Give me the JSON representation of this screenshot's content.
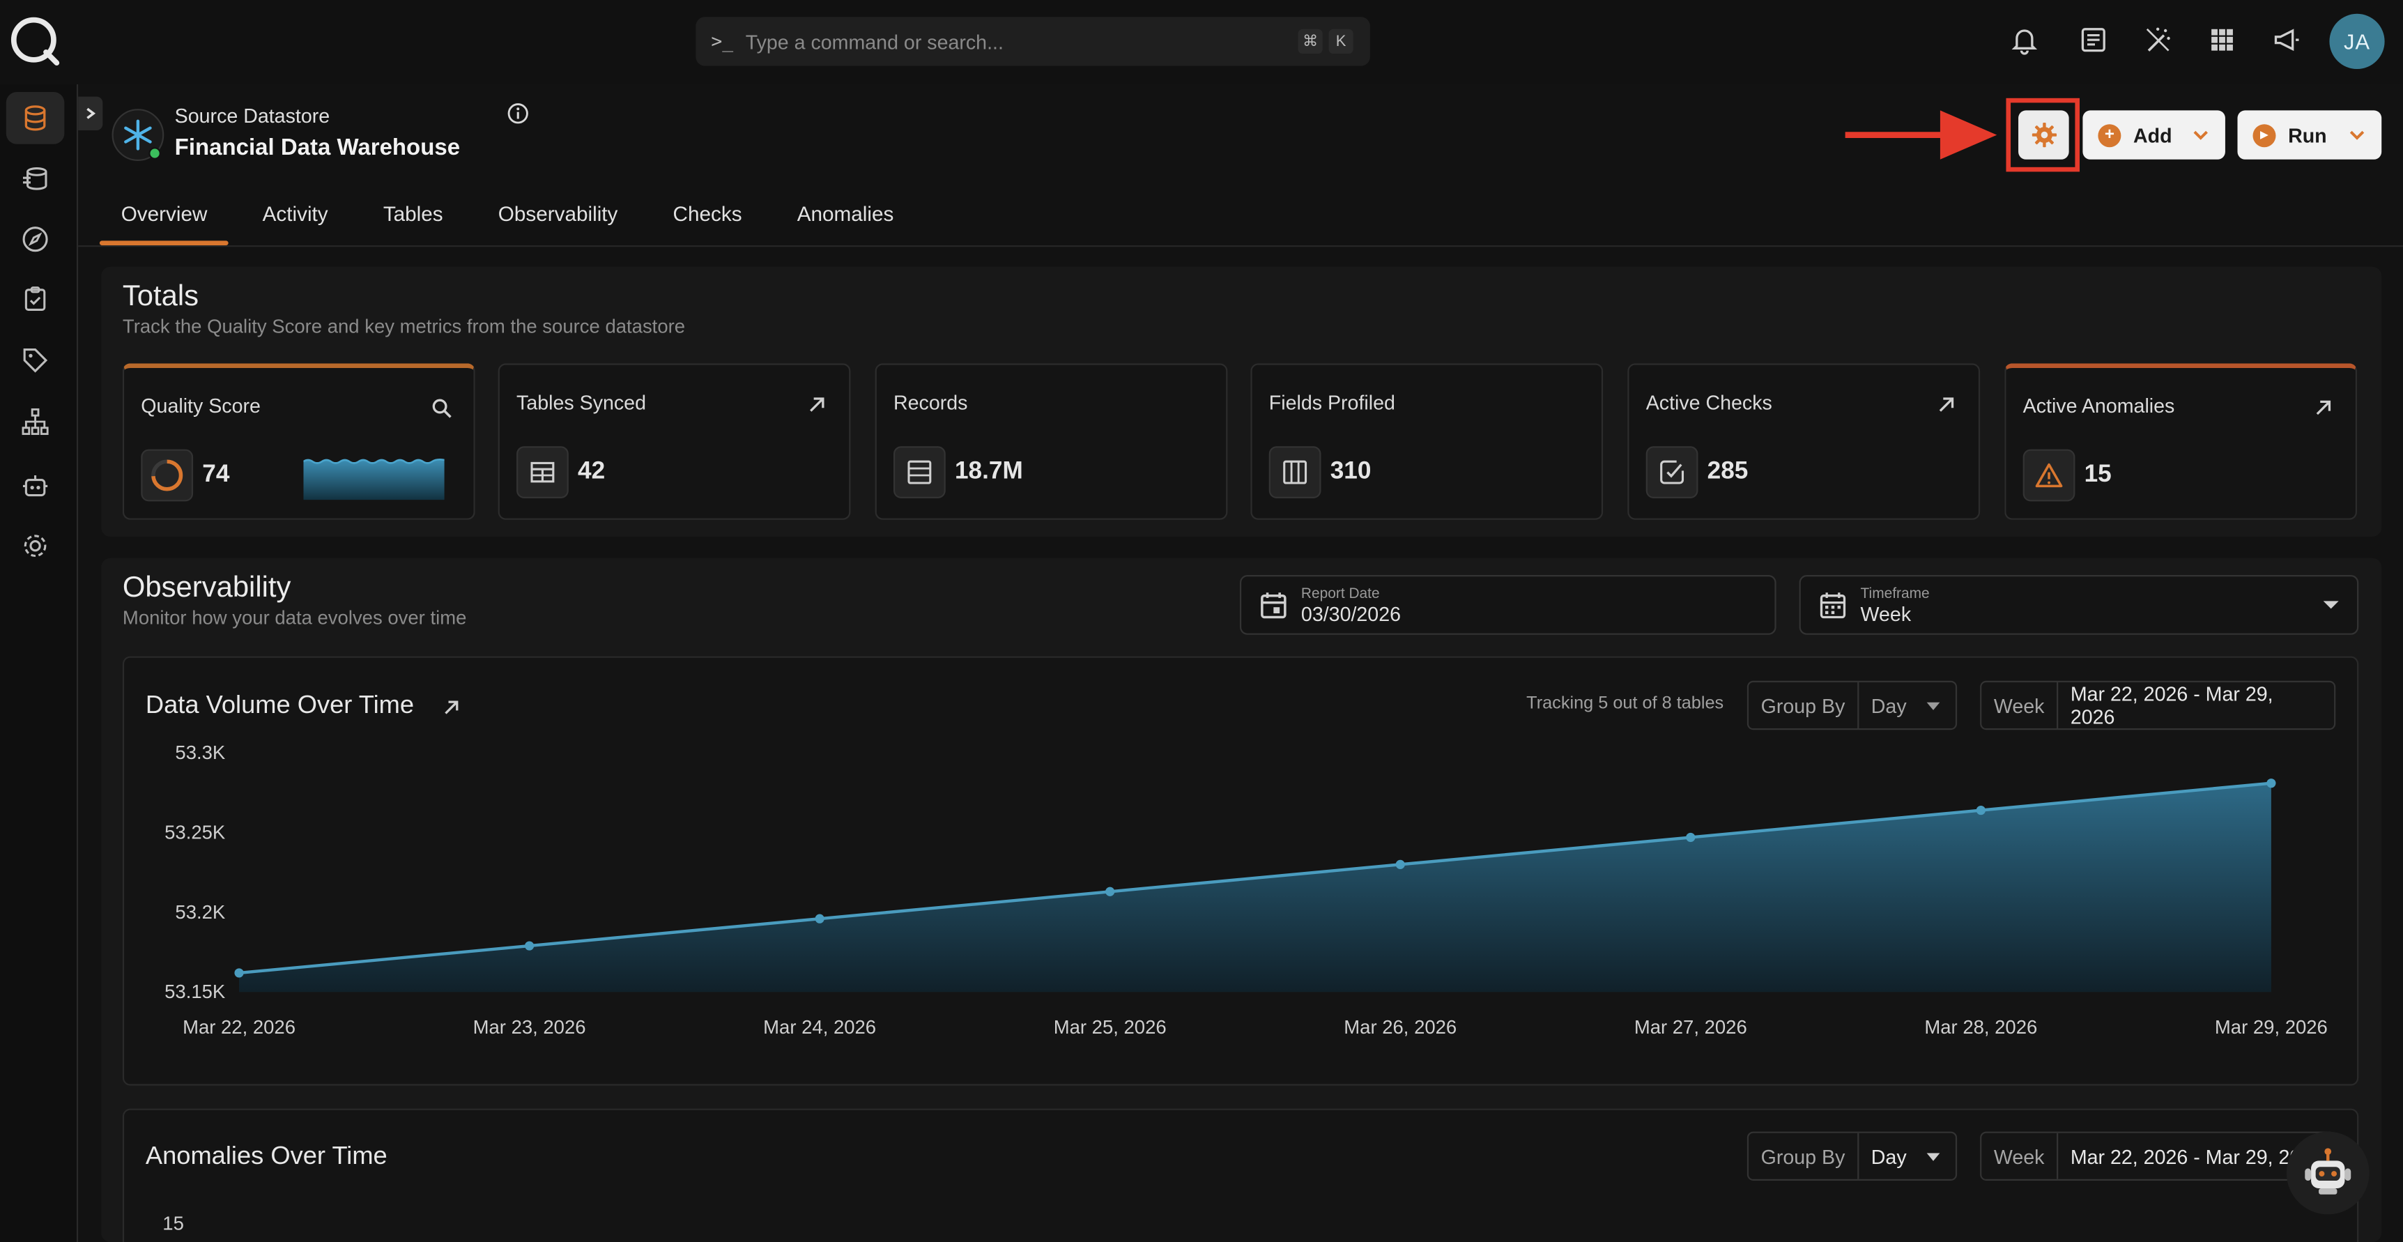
{
  "topbar": {
    "search_placeholder": "Type a command or search...",
    "shortcut_keys": [
      "⌘",
      "K"
    ],
    "user_initials": "JA",
    "icons": [
      "bell-icon",
      "document-icon",
      "magic-wand-icon",
      "apps-grid-icon",
      "megaphone-icon"
    ]
  },
  "sidebar": {
    "items": [
      {
        "icon": "database-icon",
        "active": true
      },
      {
        "icon": "database-stack-icon",
        "active": false
      },
      {
        "icon": "compass-icon",
        "active": false
      },
      {
        "icon": "checklist-icon",
        "active": false
      },
      {
        "icon": "tag-icon",
        "active": false
      },
      {
        "icon": "hierarchy-icon",
        "active": false
      },
      {
        "icon": "robot-icon",
        "active": false
      },
      {
        "icon": "gear-icon",
        "active": false
      }
    ]
  },
  "header": {
    "kind": "Source Datastore",
    "name": "Financial Data Warehouse",
    "actions": {
      "add_label": "Add",
      "run_label": "Run"
    }
  },
  "tabs": [
    {
      "label": "Overview",
      "active": true
    },
    {
      "label": "Activity",
      "active": false
    },
    {
      "label": "Tables",
      "active": false
    },
    {
      "label": "Observability",
      "active": false
    },
    {
      "label": "Checks",
      "active": false
    },
    {
      "label": "Anomalies",
      "active": false
    }
  ],
  "totals": {
    "title": "Totals",
    "subtitle": "Track the Quality Score and key metrics from the source datastore",
    "cards": [
      {
        "title": "Quality Score",
        "value": "74"
      },
      {
        "title": "Tables Synced",
        "value": "42"
      },
      {
        "title": "Records",
        "value": "18.7M"
      },
      {
        "title": "Fields Profiled",
        "value": "310"
      },
      {
        "title": "Active Checks",
        "value": "285"
      },
      {
        "title": "Active Anomalies",
        "value": "15"
      }
    ]
  },
  "observability": {
    "title": "Observability",
    "subtitle": "Monitor how your data evolves over time",
    "report_date": {
      "label": "Report Date",
      "value": "03/30/2026"
    },
    "timeframe": {
      "label": "Timeframe",
      "value": "Week"
    }
  },
  "volume_chart": {
    "title": "Data Volume Over Time",
    "tracking": "Tracking 5 out of 8 tables",
    "group_by_label": "Group By",
    "group_by_value": "Day",
    "range_label": "Week",
    "range_value": "Mar 22, 2026 - Mar 29, 2026"
  },
  "anomalies_chart": {
    "title": "Anomalies Over Time",
    "group_by_label": "Group By",
    "group_by_value": "Day",
    "range_label": "Week",
    "range_value": "Mar 22, 2026 - Mar 29, 20",
    "y_top_tick": "15"
  },
  "colors": {
    "accent": "#d9772f",
    "line": "#4a9cbf",
    "highlight": "#e53a2b"
  },
  "chart_data": {
    "type": "area",
    "title": "Data Volume Over Time",
    "categories": [
      "Mar 22, 2026",
      "Mar 23, 2026",
      "Mar 24, 2026",
      "Mar 25, 2026",
      "Mar 26, 2026",
      "Mar 27, 2026",
      "Mar 28, 2026",
      "Mar 29, 2026"
    ],
    "values": [
      53162,
      53179,
      53196,
      53213,
      53230,
      53247,
      53264,
      53281
    ],
    "yticks": [
      "53.3K",
      "53.25K",
      "53.2K",
      "53.15K"
    ],
    "ylim": [
      53150,
      53300
    ],
    "grid": false
  }
}
